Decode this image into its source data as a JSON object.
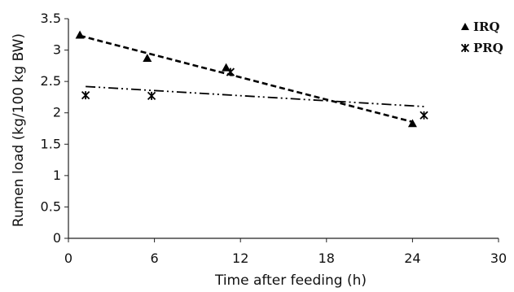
{
  "chart_data": {
    "type": "scatter",
    "title": "",
    "xlabel": "Time after feeding (h)",
    "ylabel": "Rumen load (kg/100 kg BW)",
    "xlim": [
      0,
      30
    ],
    "ylim": [
      0,
      3.5
    ],
    "xticks": [
      "0",
      "6",
      "12",
      "18",
      "24",
      "30"
    ],
    "yticks": [
      "0",
      "0.5",
      "1",
      "1.5",
      "2",
      "2.5",
      "3",
      "3.5"
    ],
    "grid": false,
    "legend_position": "top-right",
    "series": [
      {
        "name": "IRQ",
        "marker": "triangle",
        "trendline": "linear, dashed",
        "color": "#000000",
        "x": [
          0.8,
          5.5,
          11.0,
          24.0
        ],
        "y": [
          3.24,
          2.87,
          2.72,
          1.83
        ]
      },
      {
        "name": "PRQ",
        "marker": "asterisk",
        "trendline": "linear, dash-dot-dot",
        "color": "#000000",
        "x": [
          1.2,
          5.8,
          11.3,
          24.8
        ],
        "y": [
          2.28,
          2.27,
          2.65,
          1.96
        ]
      }
    ]
  }
}
